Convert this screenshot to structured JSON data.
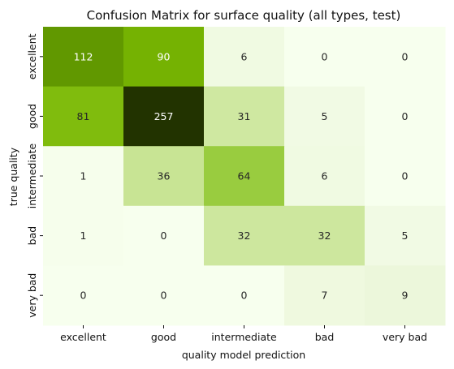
{
  "chart_data": {
    "type": "heatmap",
    "title": "Confusion Matrix for surface quality (all types, test)",
    "xlabel": "quality model prediction",
    "ylabel": "true quality",
    "x_categories": [
      "excellent",
      "good",
      "intermediate",
      "bad",
      "very bad"
    ],
    "y_categories": [
      "excellent",
      "good",
      "intermediate",
      "bad",
      "very bad"
    ],
    "values": [
      [
        112,
        90,
        6,
        0,
        0
      ],
      [
        81,
        257,
        31,
        5,
        0
      ],
      [
        1,
        36,
        64,
        6,
        0
      ],
      [
        1,
        0,
        32,
        32,
        5
      ],
      [
        0,
        0,
        0,
        7,
        9
      ]
    ],
    "colorbar": false,
    "colormap": {
      "stops": [
        {
          "t": 0.0,
          "color": "#f7ffee"
        },
        {
          "t": 0.03,
          "color": "#eef8de"
        },
        {
          "t": 0.14,
          "color": "#c8e494"
        },
        {
          "t": 0.25,
          "color": "#99cc3e"
        },
        {
          "t": 0.33,
          "color": "#7ab802"
        },
        {
          "t": 0.44,
          "color": "#609700"
        },
        {
          "t": 0.7,
          "color": "#3d5e00"
        },
        {
          "t": 1.0,
          "color": "#223300"
        }
      ],
      "dark_text_color": "#262626",
      "light_text_color": "#ffffff"
    }
  }
}
